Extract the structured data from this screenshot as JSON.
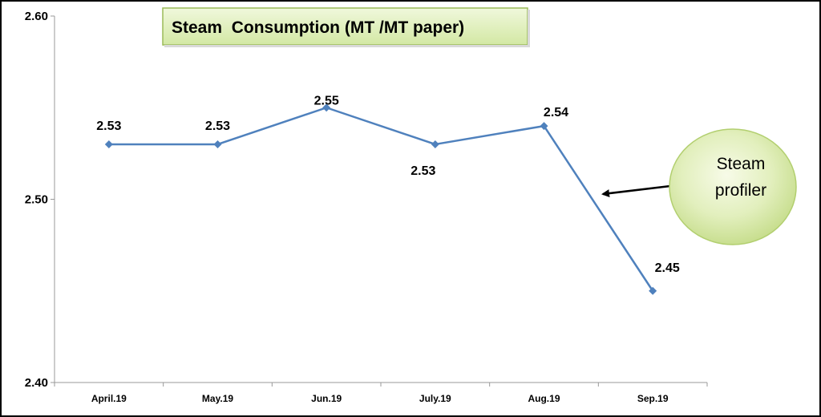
{
  "chart_data": {
    "type": "line",
    "title": "Steam  Consumption (MT /MT paper)",
    "categories": [
      "April.19",
      "May.19",
      "Jun.19",
      "July.19",
      "Aug.19",
      "Sep.19"
    ],
    "series": [
      {
        "values": [
          2.53,
          2.53,
          2.55,
          2.53,
          2.54,
          2.45
        ]
      }
    ],
    "data_labels": [
      "2.53",
      "2.53",
      "2.55",
      "2.53",
      "2.54",
      "2.45"
    ],
    "y_ticks": [
      "2.40",
      "2.50",
      "2.60"
    ],
    "ylim": [
      2.4,
      2.6
    ],
    "xlabel": "",
    "ylabel": "",
    "grid": false,
    "line_color": "#4f81bd",
    "annotation": {
      "line1": "Steam",
      "line2": "profiler"
    }
  }
}
